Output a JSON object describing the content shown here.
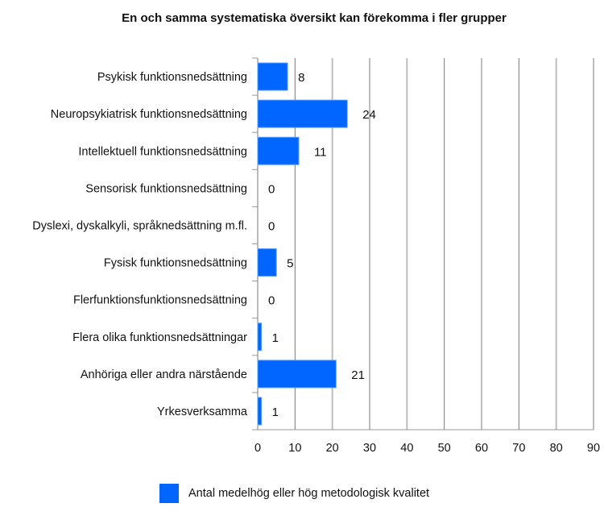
{
  "chart_data": {
    "type": "bar",
    "orientation": "horizontal",
    "title": "En och samma systematiska översikt kan förekomma i fler grupper",
    "categories": [
      "Psykisk funktionsnedsättning",
      "Neuropsykiatrisk funktionsnedsättning",
      "Intellektuell funktionsnedsättning",
      "Sensorisk funktionsnedsättning",
      "Dyslexi, dyskalkyli, språknedsättning m.fl.",
      "Fysisk funktionsnedsättning",
      "Flerfunktionsfunktionsnedsättning",
      "Flera olika funktionsnedsättningar",
      "Anhöriga eller andra närstående",
      "Yrkesverksamma"
    ],
    "series": [
      {
        "name": "Antal medelhög eller hög metodologisk kvalitet",
        "values": [
          8,
          24,
          11,
          0,
          0,
          5,
          0,
          1,
          21,
          1
        ],
        "color": "#0066ff"
      }
    ],
    "xlim": [
      0,
      90
    ],
    "xticks": [
      "0",
      "10",
      "20",
      "30",
      "40",
      "50",
      "60",
      "70",
      "80",
      "90"
    ],
    "grid": true,
    "legend": "bottom"
  }
}
